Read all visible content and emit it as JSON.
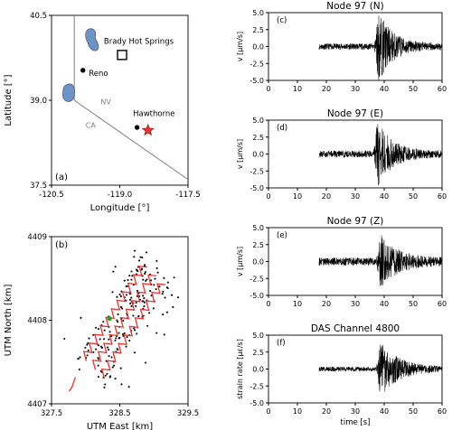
{
  "chart_data": [
    {
      "type": "map",
      "panel": "(a)",
      "xlabel": "Longitude [°]",
      "ylabel": "Latitude [°]",
      "xlim": [
        -120.5,
        -117.5
      ],
      "ylim": [
        37.5,
        40.5
      ],
      "xticks": [
        "-120.5",
        "-119.0",
        "-117.5"
      ],
      "yticks": [
        "37.5",
        "39.0",
        "40.5"
      ],
      "state_labels": [
        "NV",
        "CA"
      ],
      "places": [
        {
          "name": "Brady Hot Springs",
          "marker": "square"
        },
        {
          "name": "Reno",
          "marker": "dot"
        },
        {
          "name": "Hawthorne",
          "marker": "dot"
        }
      ],
      "event_color": "#e8332f",
      "lake_color": "#6d93c6"
    },
    {
      "type": "scatter",
      "panel": "(b)",
      "xlabel": "UTM East [km]",
      "ylabel": "UTM North [km]",
      "xlim": [
        327.5,
        329.5
      ],
      "ylim": [
        4407,
        4409
      ],
      "xticks": [
        "327.5",
        "328.5",
        "329.5"
      ],
      "yticks": [
        "4407",
        "4408",
        "4409"
      ],
      "cable_color": "#e8332f",
      "highlight_color": "#2ca02c"
    },
    {
      "type": "line",
      "panel": "(c)",
      "title": "Node 97 (N)",
      "ylabel": "v [μm/s]",
      "xlim": [
        0,
        60
      ],
      "ylim": [
        -5,
        5
      ],
      "yticks": [
        "5.0",
        "2.5",
        "0.0",
        "-2.5",
        "-5.0"
      ],
      "xticks": [
        "0",
        "10",
        "20",
        "30",
        "40",
        "50",
        "60"
      ],
      "signal": {
        "start": 17.5,
        "end": 60,
        "noise": 0.45,
        "peak_time": 38.8,
        "peak_amp": 4.9,
        "decay": 5
      }
    },
    {
      "type": "line",
      "panel": "(d)",
      "title": "Node 97 (E)",
      "ylabel": "v [μm/s]",
      "xlim": [
        0,
        60
      ],
      "ylim": [
        -5,
        5
      ],
      "yticks": [
        "5.0",
        "2.5",
        "0.0",
        "-2.5",
        "-5.0"
      ],
      "xticks": [
        "0",
        "10",
        "20",
        "30",
        "40",
        "50",
        "60"
      ],
      "signal": {
        "start": 17.5,
        "end": 60,
        "noise": 0.5,
        "peak_time": 38.5,
        "peak_amp": 4.6,
        "decay": 5
      }
    },
    {
      "type": "line",
      "panel": "(e)",
      "title": "Node 97 (Z)",
      "ylabel": "v [μm/s]",
      "xlim": [
        0,
        60
      ],
      "ylim": [
        -5,
        5
      ],
      "yticks": [
        "5.0",
        "2.5",
        "0.0",
        "-2.5",
        "-5.0"
      ],
      "xticks": [
        "0",
        "10",
        "20",
        "30",
        "40",
        "50",
        "60"
      ],
      "signal": {
        "start": 17.5,
        "end": 60,
        "noise": 0.6,
        "peak_time": 39.5,
        "peak_amp": 3.5,
        "decay": 6
      }
    },
    {
      "type": "line",
      "panel": "(f)",
      "title": "DAS Channel 4800",
      "ylabel": "strain rate [με/s]",
      "xlabel": "time [s]",
      "xlim": [
        0,
        60
      ],
      "ylim": [
        -5,
        5
      ],
      "yticks": [
        "5.0",
        "2.5",
        "0.0",
        "-2.5",
        "-5.0"
      ],
      "xticks": [
        "0",
        "10",
        "20",
        "30",
        "40",
        "50",
        "60"
      ],
      "signal": {
        "start": 17.5,
        "end": 60,
        "noise": 0.35,
        "peak_time": 39.5,
        "peak_amp": 3.9,
        "decay": 6
      }
    }
  ]
}
